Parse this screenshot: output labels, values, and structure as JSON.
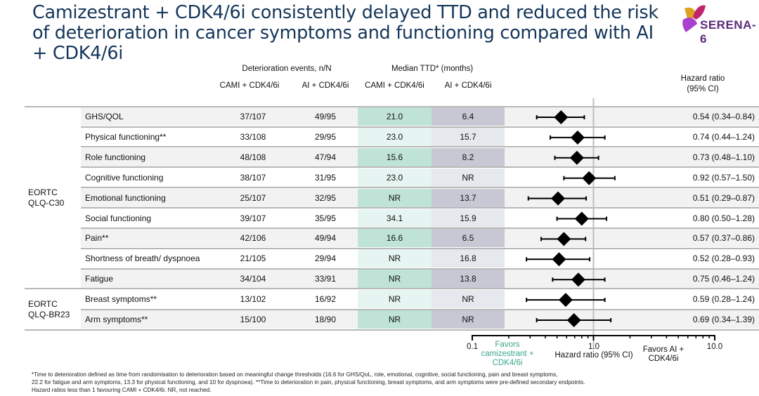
{
  "title": "Camizestrant + CDK4/6i consistently delayed TTD and reduced the risk of deterioration in cancer symptoms and functioning compared with AI + CDK4/6i",
  "logo": {
    "text": "SERENA-6"
  },
  "headers": {
    "events": "Deterioration events, n/N",
    "median": "Median TTD* (months)",
    "cami": "CAMI + CDK4/6i",
    "ai": "AI + CDK4/6i",
    "hr_line1": "Hazard ratio",
    "hr_line2": "(95% CI)"
  },
  "groups": [
    {
      "line1": "EORTC",
      "line2": "QLQ-C30"
    },
    {
      "line1": "EORTC",
      "line2": "QLQ-BR23"
    }
  ],
  "colors": {
    "cami_strong": "#c0e3d8",
    "cami_light": "#e6f5f1",
    "ai_strong": "#c8c8d4",
    "ai_light": "#e5e8ec",
    "favors_cami": "#3aa58a",
    "title": "#15365a"
  },
  "chart_data": {
    "type": "forest",
    "xscale": "log",
    "xlim": [
      0.1,
      10.0
    ],
    "reference_line": 1.0,
    "xticks": [
      "0.1",
      "1.0",
      "10.0"
    ],
    "xlabel": "Hazard ratio (95% CI)",
    "favors_left": "Favors camizestrant + CDK4/6i",
    "favors_right": "Favors AI + CDK4/6i",
    "rows": [
      {
        "label": "GHS/QOL",
        "cami_events": "37/107",
        "ai_events": "49/95",
        "cami_median": "21.0",
        "ai_median": "6.4",
        "hr": 0.54,
        "lo": 0.34,
        "hi": 0.84,
        "hr_text": "0.54 (0.34–0.84)"
      },
      {
        "label": "Physical functioning**",
        "cami_events": "33/108",
        "ai_events": "29/95",
        "cami_median": "23.0",
        "ai_median": "15.7",
        "hr": 0.74,
        "lo": 0.44,
        "hi": 1.24,
        "hr_text": "0.74 (0.44–1.24)"
      },
      {
        "label": "Role functioning",
        "cami_events": "48/108",
        "ai_events": "47/94",
        "cami_median": "15.6",
        "ai_median": "8.2",
        "hr": 0.73,
        "lo": 0.48,
        "hi": 1.1,
        "hr_text": "0.73 (0.48–1.10)"
      },
      {
        "label": "Cognitive functioning",
        "cami_events": "38/107",
        "ai_events": "31/95",
        "cami_median": "23.0",
        "ai_median": "NR",
        "hr": 0.92,
        "lo": 0.57,
        "hi": 1.5,
        "hr_text": "0.92 (0.57–1.50)"
      },
      {
        "label": "Emotional functioning",
        "cami_events": "25/107",
        "ai_events": "32/95",
        "cami_median": "NR",
        "ai_median": "13.7",
        "hr": 0.51,
        "lo": 0.29,
        "hi": 0.87,
        "hr_text": "0.51 (0.29–0.87)"
      },
      {
        "label": "Social functioning",
        "cami_events": "39/107",
        "ai_events": "35/95",
        "cami_median": "34.1",
        "ai_median": "15.9",
        "hr": 0.8,
        "lo": 0.5,
        "hi": 1.28,
        "hr_text": "0.80 (0.50–1.28)"
      },
      {
        "label": "Pain**",
        "cami_events": "42/106",
        "ai_events": "49/94",
        "cami_median": "16.6",
        "ai_median": "6.5",
        "hr": 0.57,
        "lo": 0.37,
        "hi": 0.86,
        "hr_text": "0.57 (0.37–0.86)"
      },
      {
        "label": "Shortness of breath/ dyspnoea",
        "cami_events": "21/105",
        "ai_events": "29/94",
        "cami_median": "NR",
        "ai_median": "16.8",
        "hr": 0.52,
        "lo": 0.28,
        "hi": 0.93,
        "hr_text": "0.52 (0.28–0.93)"
      },
      {
        "label": "Fatigue",
        "cami_events": "34/104",
        "ai_events": "33/91",
        "cami_median": "NR",
        "ai_median": "13.8",
        "hr": 0.75,
        "lo": 0.46,
        "hi": 1.24,
        "hr_text": "0.75 (0.46–1.24)"
      },
      {
        "label": "Breast symptoms**",
        "cami_events": "13/102",
        "ai_events": "16/92",
        "cami_median": "NR",
        "ai_median": "NR",
        "hr": 0.59,
        "lo": 0.28,
        "hi": 1.24,
        "hr_text": "0.59 (0.28–1.24)"
      },
      {
        "label": "Arm symptoms**",
        "cami_events": "15/100",
        "ai_events": "18/90",
        "cami_median": "NR",
        "ai_median": "NR",
        "hr": 0.69,
        "lo": 0.34,
        "hi": 1.39,
        "hr_text": "0.69 (0.34–1.39)"
      }
    ]
  },
  "footnote": {
    "line1": "*Time to deterioration defined as time from randomisation to deterioration based on meaningful change thresholds (16.6 for GHS/QoL, role, emotional, cognitive, social functioning, pain and breast symptoms,",
    "line2": "22.2 for fatigue and arm symptoms, 13.3 for physical functioning, and 10 for dyspnoea). **Time to deterioration in pain, physical functioning, breast symptoms, and arm symptoms were pre-defined secondary endpoints.",
    "line3": "Hazard ratios less than 1 favouring CAMI + CDK4/6i. NR, not reached."
  }
}
